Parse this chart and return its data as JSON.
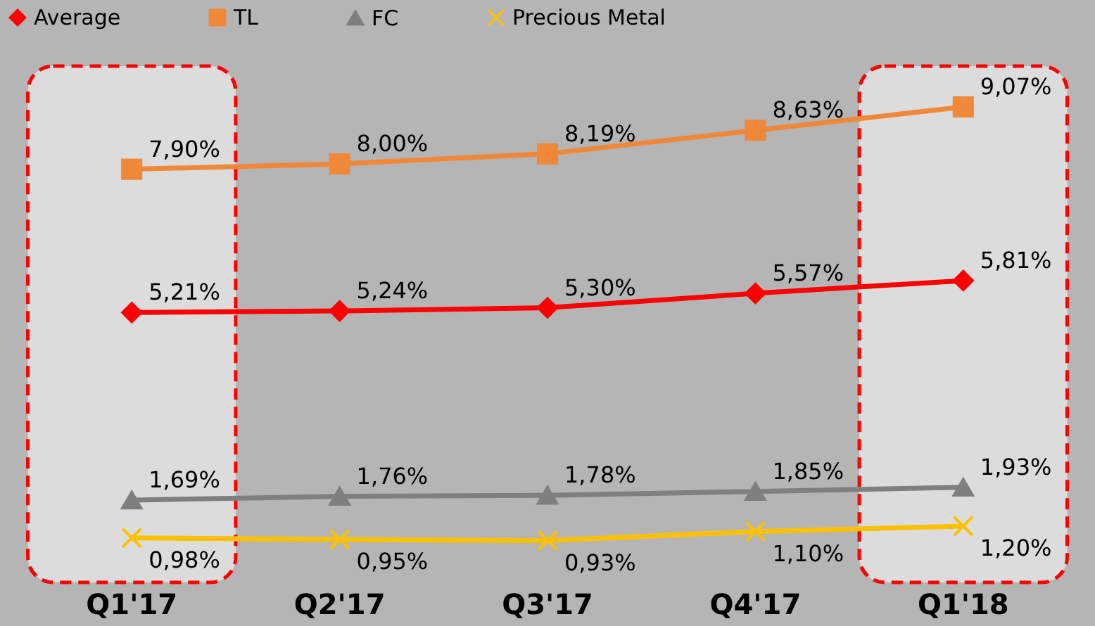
{
  "chart_data": {
    "type": "line",
    "categories": [
      "Q1'17",
      "Q2'17",
      "Q3'17",
      "Q4'17",
      "Q1'18"
    ],
    "series": [
      {
        "name": "Average",
        "color": "#ff0000",
        "marker": "diamond",
        "values": [
          5.21,
          5.24,
          5.3,
          5.57,
          5.81
        ],
        "value_labels": [
          "5,21%",
          "5,24%",
          "5,30%",
          "5,57%",
          "5,81%"
        ]
      },
      {
        "name": "TL",
        "color": "#f0883a",
        "marker": "square",
        "values": [
          7.9,
          8.0,
          8.19,
          8.63,
          9.07
        ],
        "value_labels": [
          "7,90%",
          "8,00%",
          "8,19%",
          "8,63%",
          "9,07%"
        ]
      },
      {
        "name": "FC",
        "color": "#7f7f7f",
        "marker": "triangle",
        "values": [
          1.69,
          1.76,
          1.78,
          1.85,
          1.93
        ],
        "value_labels": [
          "1,69%",
          "1,76%",
          "1,78%",
          "1,85%",
          "1,93%"
        ]
      },
      {
        "name": "Precious Metal",
        "color": "#ffc000",
        "marker": "cross",
        "values": [
          0.98,
          0.95,
          0.93,
          1.1,
          1.2
        ],
        "value_labels": [
          "0,98%",
          "0,95%",
          "0,93%",
          "1,10%",
          "1,20%"
        ]
      }
    ],
    "bands": [
      {
        "axis": "x",
        "from": "Q1'17",
        "to": "Q1'17",
        "color": "#ff0000"
      },
      {
        "axis": "x",
        "from": "Q1'18",
        "to": "Q1'18",
        "color": "#ff0000"
      }
    ],
    "legend": "top",
    "grid": false,
    "line_style": "solid"
  }
}
